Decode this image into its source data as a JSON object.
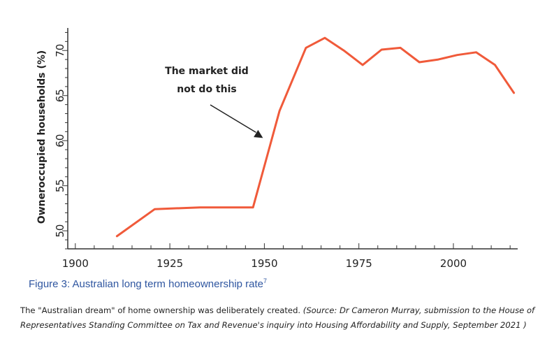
{
  "chart_data": {
    "type": "line",
    "ylabel": "Owneroccupied households (%)",
    "xlabel": "",
    "x_ticks": [
      1900,
      1925,
      1950,
      1975,
      2000
    ],
    "y_ticks": [
      50,
      55,
      60,
      65,
      70
    ],
    "xlim": [
      1898,
      2017
    ],
    "ylim": [
      48,
      72.5
    ],
    "grid": false,
    "series": [
      {
        "color": "#f05a3a",
        "x": [
          1911,
          1921,
          1933,
          1947,
          1954,
          1961,
          1966,
          1971,
          1976,
          1981,
          1986,
          1991,
          1996,
          2001,
          2006,
          2011,
          2016
        ],
        "y": [
          49.4,
          52.4,
          52.6,
          52.6,
          63.3,
          70.3,
          71.4,
          70.0,
          68.4,
          70.1,
          70.3,
          68.7,
          69.0,
          69.5,
          69.8,
          68.4,
          65.3
        ]
      }
    ],
    "annotation": {
      "lines": [
        "The market did",
        "not do this"
      ],
      "arrow_target": {
        "x": 1950,
        "y": 60.3
      }
    }
  },
  "figure_caption": {
    "text": "Figure 3: Australian long term homeownership rate",
    "superscript": "7"
  },
  "article_caption": {
    "text": "The \"Australian dream\" of home ownership was deliberately created. ",
    "source": "(Source: Dr Cameron Murray, submission to the House of Representatives Standing Committee on Tax and Revenue's inquiry into Housing Affordability and Supply, September 2021 )"
  }
}
